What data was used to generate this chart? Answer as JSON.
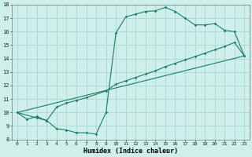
{
  "xlabel": "Humidex (Indice chaleur)",
  "bg_color": "#cff0ea",
  "grid_color": "#a8d8d0",
  "line_color": "#1a7a6e",
  "xlim": [
    -0.5,
    23.5
  ],
  "ylim": [
    8,
    18
  ],
  "xticks": [
    0,
    1,
    2,
    3,
    4,
    5,
    6,
    7,
    8,
    9,
    10,
    11,
    12,
    13,
    14,
    15,
    16,
    17,
    18,
    19,
    20,
    21,
    22,
    23
  ],
  "yticks": [
    8,
    9,
    10,
    11,
    12,
    13,
    14,
    15,
    16,
    17,
    18
  ],
  "curve1_x": [
    0,
    1,
    2,
    3,
    4,
    5,
    6,
    7,
    8,
    9,
    10,
    11,
    12,
    13,
    14,
    15,
    16,
    17,
    18,
    19,
    20,
    21,
    22,
    23
  ],
  "curve1_y": [
    10.0,
    9.5,
    9.7,
    9.4,
    8.8,
    8.7,
    8.5,
    8.5,
    8.4,
    10.0,
    15.9,
    17.1,
    17.3,
    17.5,
    17.55,
    17.8,
    17.5,
    17.0,
    16.5,
    16.5,
    16.6,
    16.1,
    16.0,
    14.2
  ],
  "curve2_x": [
    0,
    2,
    3,
    4,
    5,
    6,
    7,
    9,
    10,
    11,
    12,
    13,
    14,
    15,
    16,
    17,
    18,
    19,
    20,
    21,
    22,
    23
  ],
  "curve2_y": [
    10.0,
    9.6,
    9.4,
    10.4,
    10.7,
    10.9,
    11.1,
    11.6,
    12.1,
    12.35,
    12.6,
    12.85,
    13.1,
    13.4,
    13.65,
    13.9,
    14.15,
    14.4,
    14.65,
    14.9,
    15.2,
    14.2
  ],
  "line3_x": [
    0,
    23
  ],
  "line3_y": [
    10.0,
    14.2
  ]
}
